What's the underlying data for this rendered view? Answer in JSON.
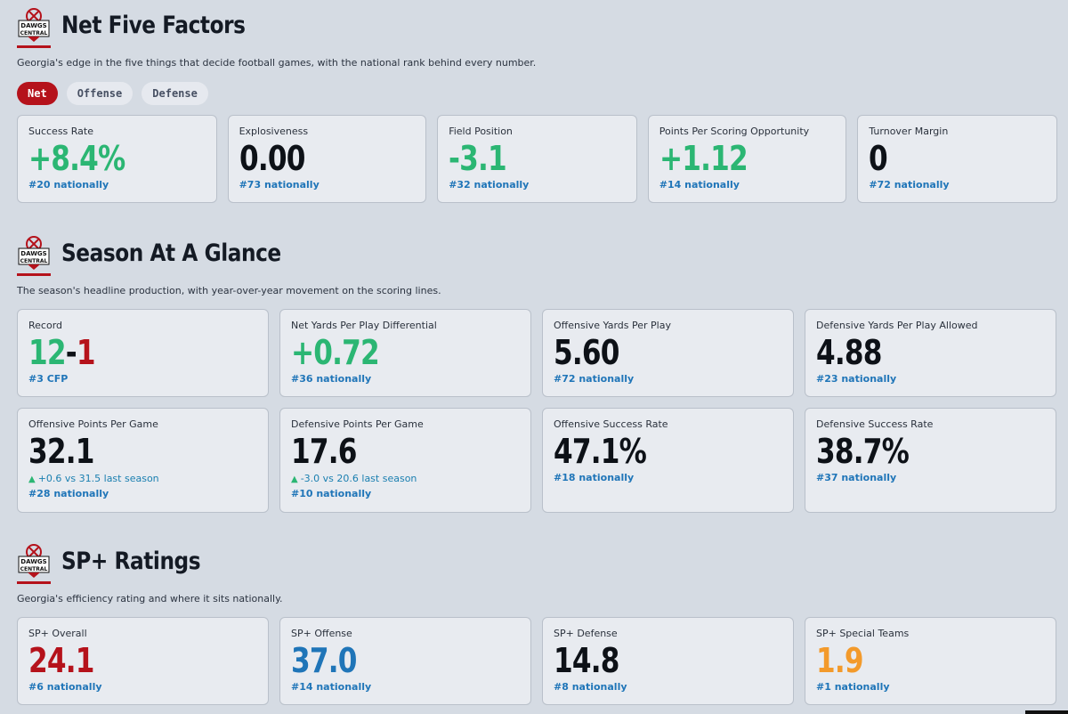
{
  "net_five": {
    "title": "Net Five Factors",
    "subtitle": "Georgia's edge in the five things that decide football games, with the national rank behind every number.",
    "tabs": [
      {
        "label": "Net",
        "active": true
      },
      {
        "label": "Offense",
        "active": false
      },
      {
        "label": "Defense",
        "active": false
      }
    ],
    "cards": [
      {
        "label": "Success Rate",
        "value": "+8.4%",
        "rank": "#20 nationally",
        "color": "#2bb673"
      },
      {
        "label": "Explosiveness",
        "value": "0.00",
        "rank": "#73 nationally",
        "color": "#0d1117"
      },
      {
        "label": "Field Position",
        "value": "-3.1",
        "rank": "#32 nationally",
        "color": "#2bb673"
      },
      {
        "label": "Points Per Scoring Opportunity",
        "value": "+1.12",
        "rank": "#14 nationally",
        "color": "#2bb673"
      },
      {
        "label": "Turnover Margin",
        "value": "0",
        "rank": "#72 nationally",
        "color": "#0d1117"
      }
    ]
  },
  "glance": {
    "title": "Season At A Glance",
    "subtitle": "The season's headline production, with year-over-year movement on the scoring lines.",
    "record": {
      "label": "Record",
      "wins": "12",
      "dash": "-",
      "losses": "1",
      "rank": "#3 CFP"
    },
    "cards_row1": [
      {
        "label": "Net Yards Per Play Differential",
        "value": "+0.72",
        "rank": "#36 nationally",
        "color": "#2bb673"
      },
      {
        "label": "Offensive Yards Per Play",
        "value": "5.60",
        "rank": "#72 nationally",
        "color": "#0d1117"
      },
      {
        "label": "Defensive Yards Per Play Allowed",
        "value": "4.88",
        "rank": "#23 nationally",
        "color": "#0d1117"
      }
    ],
    "cards_row2": [
      {
        "label": "Offensive Points Per Game",
        "value": "32.1",
        "delta": "+0.6 vs 31.5 last season",
        "rank": "#28 nationally"
      },
      {
        "label": "Defensive Points Per Game",
        "value": "17.6",
        "delta": "-3.0 vs 20.6 last season",
        "rank": "#10 nationally"
      },
      {
        "label": "Offensive Success Rate",
        "value": "47.1%",
        "rank": "#18 nationally"
      },
      {
        "label": "Defensive Success Rate",
        "value": "38.7%",
        "rank": "#37 nationally"
      }
    ]
  },
  "sp": {
    "title": "SP+ Ratings",
    "subtitle": "Georgia's efficiency rating and where it sits nationally.",
    "cards": [
      {
        "label": "SP+ Overall",
        "value": "24.1",
        "rank": "#6 nationally",
        "color": "#b5121b"
      },
      {
        "label": "SP+ Offense",
        "value": "37.0",
        "rank": "#14 nationally",
        "color": "#1f75b8"
      },
      {
        "label": "SP+ Defense",
        "value": "14.8",
        "rank": "#8 nationally",
        "color": "#0d1117"
      },
      {
        "label": "SP+ Special Teams",
        "value": "1.9",
        "rank": "#1 nationally",
        "color": "#f39a2b"
      }
    ]
  },
  "logo": {
    "line1": "DAWGS",
    "line2": "CENTRAL"
  }
}
